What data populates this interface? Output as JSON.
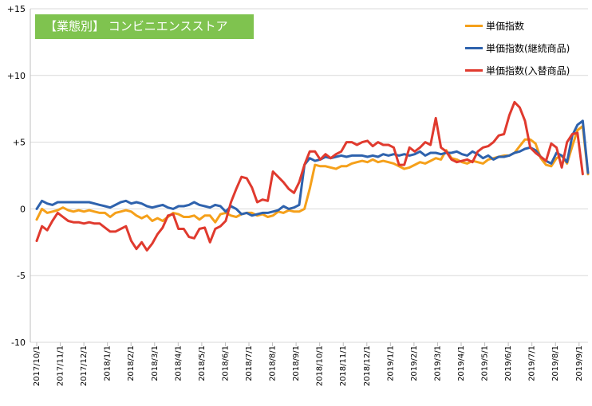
{
  "chart_data": {
    "type": "line",
    "title": "【業態別】 コンビニエンスストア",
    "ylim": [
      -10,
      15
    ],
    "yticks": [
      15,
      10,
      5,
      0,
      -5,
      -10
    ],
    "ytick_labels": [
      "+15",
      "+10",
      "+5",
      "0",
      "-5",
      "-10"
    ],
    "xticks": [
      "2017/10/1",
      "2017/11/1",
      "2017/12/1",
      "2018/1/1",
      "2018/2/1",
      "2018/3/1",
      "2018/4/1",
      "2018/5/1",
      "2018/6/1",
      "2018/7/1",
      "2018/8/1",
      "2018/9/1",
      "2018/10/1",
      "2018/11/1",
      "2018/12/1",
      "2019/1/1",
      "2019/2/1",
      "2019/3/1",
      "2019/4/1",
      "2019/5/1",
      "2019/6/1",
      "2019/7/1",
      "2019/8/1",
      "2019/9/1"
    ],
    "grid": "horizontal",
    "legend_position": "top-right",
    "series": [
      {
        "name": "単価指数",
        "color": "#f5a01a",
        "values": [
          -0.8,
          0.0,
          -0.3,
          -0.2,
          -0.1,
          0.1,
          -0.1,
          -0.2,
          -0.1,
          -0.2,
          -0.1,
          -0.2,
          -0.3,
          -0.3,
          -0.6,
          -0.3,
          -0.2,
          -0.1,
          -0.2,
          -0.5,
          -0.7,
          -0.5,
          -0.9,
          -0.7,
          -0.9,
          -0.6,
          -0.3,
          -0.4,
          -0.6,
          -0.6,
          -0.5,
          -0.8,
          -0.5,
          -0.5,
          -1.0,
          -0.4,
          -0.3,
          -0.5,
          -0.6,
          -0.4,
          -0.3,
          -0.3,
          -0.5,
          -0.4,
          -0.6,
          -0.5,
          -0.2,
          -0.3,
          -0.1,
          -0.2,
          -0.2,
          0.0,
          1.5,
          3.3,
          3.2,
          3.2,
          3.1,
          3.0,
          3.2,
          3.2,
          3.4,
          3.5,
          3.6,
          3.5,
          3.7,
          3.5,
          3.6,
          3.5,
          3.4,
          3.2,
          3.0,
          3.1,
          3.3,
          3.5,
          3.4,
          3.6,
          3.8,
          3.7,
          4.4,
          3.8,
          3.7,
          3.5,
          3.4,
          3.6,
          3.5,
          3.4,
          3.7,
          3.8,
          3.9,
          4.0,
          4.0,
          4.2,
          4.7,
          5.2,
          5.2,
          4.9,
          3.8,
          3.3,
          3.2,
          3.8,
          4.0,
          3.4,
          4.7,
          5.9,
          6.2,
          2.6
        ]
      },
      {
        "name": "単価指数(継続商品)",
        "color": "#2e62ad",
        "values": [
          0.0,
          0.6,
          0.4,
          0.3,
          0.5,
          0.5,
          0.5,
          0.5,
          0.5,
          0.5,
          0.5,
          0.4,
          0.3,
          0.2,
          0.1,
          0.3,
          0.5,
          0.6,
          0.4,
          0.5,
          0.4,
          0.2,
          0.1,
          0.2,
          0.3,
          0.1,
          0.0,
          0.2,
          0.2,
          0.3,
          0.5,
          0.3,
          0.2,
          0.1,
          0.3,
          0.2,
          -0.2,
          0.2,
          0.0,
          -0.4,
          -0.3,
          -0.5,
          -0.4,
          -0.3,
          -0.3,
          -0.2,
          -0.1,
          0.2,
          0.0,
          0.1,
          0.3,
          3.3,
          3.8,
          3.6,
          3.7,
          3.9,
          3.8,
          3.9,
          4.0,
          3.9,
          4.0,
          4.0,
          4.0,
          3.9,
          4.0,
          3.9,
          4.1,
          4.0,
          4.1,
          4.0,
          4.1,
          4.0,
          4.1,
          4.3,
          4.0,
          4.2,
          4.2,
          4.1,
          4.2,
          4.2,
          4.3,
          4.1,
          4.0,
          4.3,
          4.1,
          3.8,
          4.0,
          3.7,
          3.9,
          3.9,
          4.0,
          4.2,
          4.3,
          4.5,
          4.6,
          4.4,
          3.9,
          3.6,
          3.4,
          4.2,
          4.0,
          3.5,
          5.5,
          6.3,
          6.6,
          2.7
        ]
      },
      {
        "name": "単価指数(入替商品)",
        "color": "#e03a2e",
        "values": [
          -2.4,
          -1.3,
          -1.6,
          -0.9,
          -0.3,
          -0.6,
          -0.9,
          -1.0,
          -1.0,
          -1.1,
          -1.0,
          -1.1,
          -1.1,
          -1.4,
          -1.7,
          -1.7,
          -1.5,
          -1.3,
          -2.4,
          -3.0,
          -2.5,
          -3.1,
          -2.6,
          -1.9,
          -1.4,
          -0.5,
          -0.4,
          -1.5,
          -1.5,
          -2.1,
          -2.2,
          -1.5,
          -1.4,
          -2.5,
          -1.5,
          -1.3,
          -0.9,
          0.5,
          1.5,
          2.4,
          2.3,
          1.6,
          0.5,
          0.7,
          0.6,
          2.8,
          2.4,
          2.0,
          1.5,
          1.2,
          2.0,
          3.3,
          4.3,
          4.3,
          3.7,
          4.1,
          3.8,
          4.1,
          4.3,
          5.0,
          5.0,
          4.8,
          5.0,
          5.1,
          4.7,
          5.0,
          4.8,
          4.8,
          4.6,
          3.3,
          3.3,
          4.6,
          4.3,
          4.6,
          5.0,
          4.8,
          6.8,
          4.6,
          4.3,
          3.7,
          3.5,
          3.6,
          3.7,
          3.5,
          4.3,
          4.6,
          4.7,
          5.0,
          5.5,
          5.6,
          7.0,
          8.0,
          7.6,
          6.6,
          4.6,
          4.2,
          3.9,
          3.6,
          4.9,
          4.6,
          3.1,
          5.0,
          5.6,
          5.7,
          2.6
        ]
      }
    ]
  }
}
